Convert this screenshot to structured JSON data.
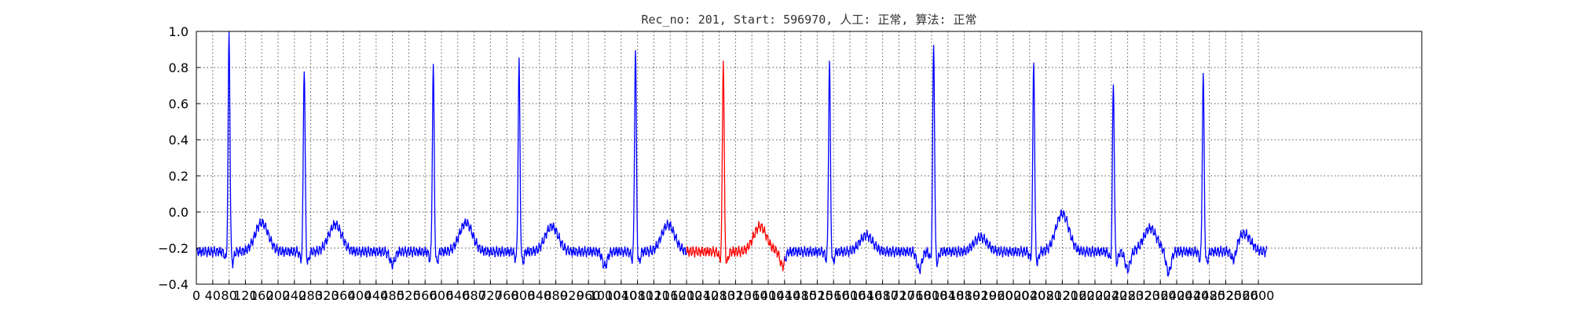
{
  "chart_data": {
    "type": "line",
    "title": "Rec_no: 201, Start: 596970, 人工: 正常, 算法: 正常",
    "xlabel": "",
    "ylabel": "",
    "xlim": [
      0,
      3000
    ],
    "ylim": [
      -0.4,
      1.0
    ],
    "grid": true,
    "y_ticks": [
      "1.0",
      "0.8",
      "0.6",
      "0.4",
      "0.2",
      "0.0",
      "−0.2",
      "−0.4"
    ],
    "x_ticks": [
      "0",
      "40",
      "80",
      "120",
      "160",
      "200",
      "240",
      "280",
      "320",
      "360",
      "400",
      "440",
      "480",
      "520",
      "560",
      "600",
      "640",
      "680",
      "720",
      "760",
      "800",
      "840",
      "880",
      "920",
      "960",
      "1000",
      "1040",
      "1080",
      "1120",
      "1160",
      "1200",
      "1240",
      "1280",
      "1320",
      "1360",
      "1400",
      "1440",
      "1480",
      "1520",
      "1560",
      "1600",
      "1640",
      "1680",
      "1720",
      "1760",
      "1800",
      "1840",
      "1880",
      "1920",
      "1960",
      "2000",
      "2040",
      "2080",
      "2120",
      "2160",
      "2200",
      "2240",
      "2280",
      "2320",
      "2360",
      "2400",
      "2440",
      "2480",
      "2520",
      "2560",
      "2600"
    ],
    "x_extent": 2620,
    "baseline": -0.22,
    "highlight": {
      "start": 1200,
      "end": 1440,
      "color": "#ff0000"
    },
    "line_color": "#0000ff",
    "r_peaks": [
      {
        "x": 80,
        "y": 0.99
      },
      {
        "x": 264,
        "y": 0.81
      },
      {
        "x": 580,
        "y": 0.81
      },
      {
        "x": 790,
        "y": 0.83
      },
      {
        "x": 1075,
        "y": 0.91
      },
      {
        "x": 1290,
        "y": 0.85
      },
      {
        "x": 1550,
        "y": 0.84
      },
      {
        "x": 1805,
        "y": 0.94
      },
      {
        "x": 2050,
        "y": 0.85
      },
      {
        "x": 2245,
        "y": 0.72
      },
      {
        "x": 2465,
        "y": 0.76
      }
    ],
    "t_waves": [
      {
        "x": 160,
        "y": -0.06
      },
      {
        "x": 340,
        "y": -0.07
      },
      {
        "x": 660,
        "y": -0.06
      },
      {
        "x": 870,
        "y": -0.08
      },
      {
        "x": 1155,
        "y": -0.07
      },
      {
        "x": 1380,
        "y": -0.08
      },
      {
        "x": 1640,
        "y": -0.13
      },
      {
        "x": 1920,
        "y": -0.14
      },
      {
        "x": 2120,
        "y": -0.01
      },
      {
        "x": 2335,
        "y": -0.09
      },
      {
        "x": 2565,
        "y": -0.12
      }
    ],
    "dips": [
      {
        "x": 480,
        "y": -0.29
      },
      {
        "x": 1000,
        "y": -0.3
      },
      {
        "x": 1435,
        "y": -0.3
      },
      {
        "x": 1770,
        "y": -0.32
      },
      {
        "x": 2280,
        "y": -0.32
      },
      {
        "x": 2380,
        "y": -0.34
      },
      {
        "x": 2540,
        "y": -0.29
      }
    ]
  }
}
